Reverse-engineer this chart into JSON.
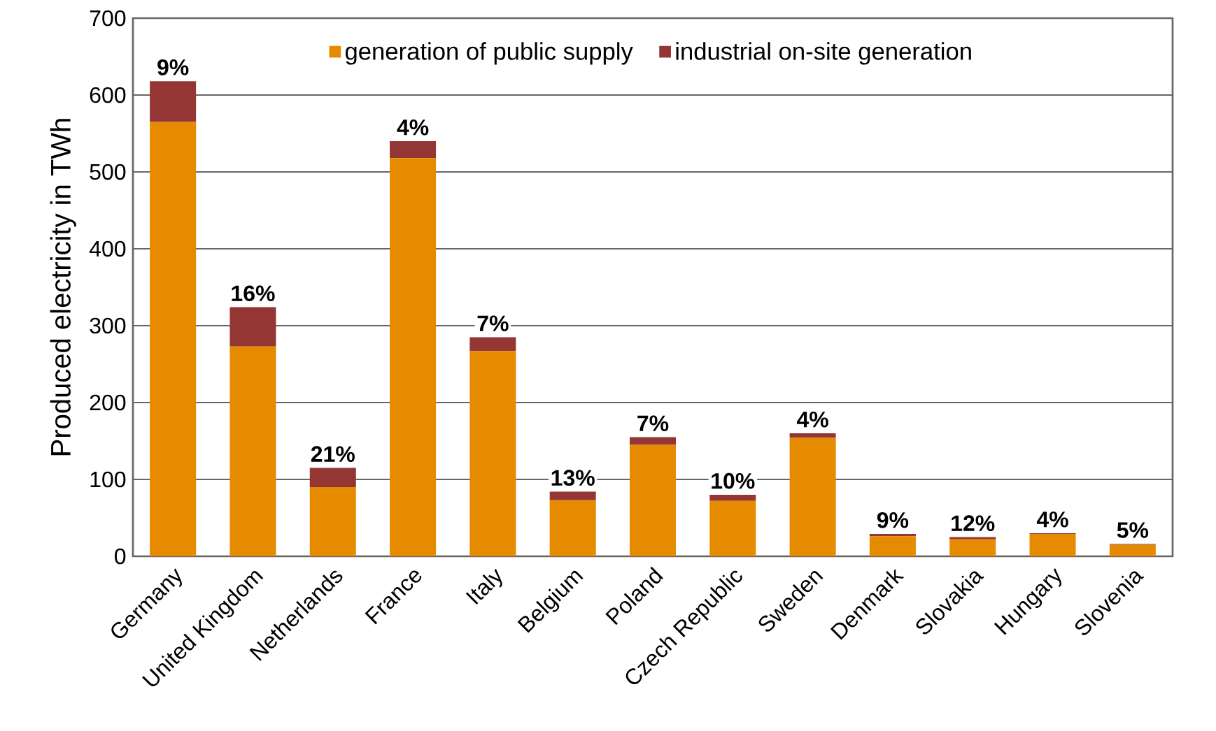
{
  "chart_data": {
    "type": "bar",
    "stacked": true,
    "ylabel": "Produced electricity  in TWh",
    "categories": [
      "Germany",
      "United Kingdom",
      "Netherlands",
      "France",
      "Italy",
      "Belgium",
      "Poland",
      "Czech Republic",
      "Sweden",
      "Denmark",
      "Slovakia",
      "Hungary",
      "Slovenia"
    ],
    "series": [
      {
        "name": "generation of public supply",
        "color": "#e68a00",
        "values": [
          565,
          273,
          90,
          518,
          267,
          73,
          145,
          72,
          154,
          26,
          22,
          29,
          15
        ]
      },
      {
        "name": "industrial on-site generation",
        "color": "#943634",
        "values": [
          53,
          51,
          25,
          22,
          18,
          11,
          10,
          8,
          6,
          3,
          3,
          1,
          1
        ]
      }
    ],
    "annotations": [
      {
        "text": "9%",
        "x": "Germany",
        "y": 618
      },
      {
        "text": "16%",
        "x": "United Kingdom",
        "y": 324
      },
      {
        "text": "21%",
        "x": "Netherlands",
        "y": 115
      },
      {
        "text": "4%",
        "x": "France",
        "y": 540
      },
      {
        "text": "7%",
        "x": "Italy",
        "y": 285
      },
      {
        "text": "13%",
        "x": "Belgium",
        "y": 84
      },
      {
        "text": "7%",
        "x": "Poland",
        "y": 155
      },
      {
        "text": "10%",
        "x": "Czech Republic",
        "y": 80
      },
      {
        "text": "4%",
        "x": "Sweden",
        "y": 160
      },
      {
        "text": "9%",
        "x": "Denmark",
        "y": 29
      },
      {
        "text": "12%",
        "x": "Slovakia",
        "y": 25
      },
      {
        "text": "4%",
        "x": "Hungary",
        "y": 30
      },
      {
        "text": "5%",
        "x": "Slovenia",
        "y": 16
      }
    ],
    "ylim": [
      0,
      700
    ],
    "yticks": [
      0,
      100,
      200,
      300,
      400,
      500,
      600,
      700
    ],
    "grid": "y",
    "legend": "top"
  }
}
